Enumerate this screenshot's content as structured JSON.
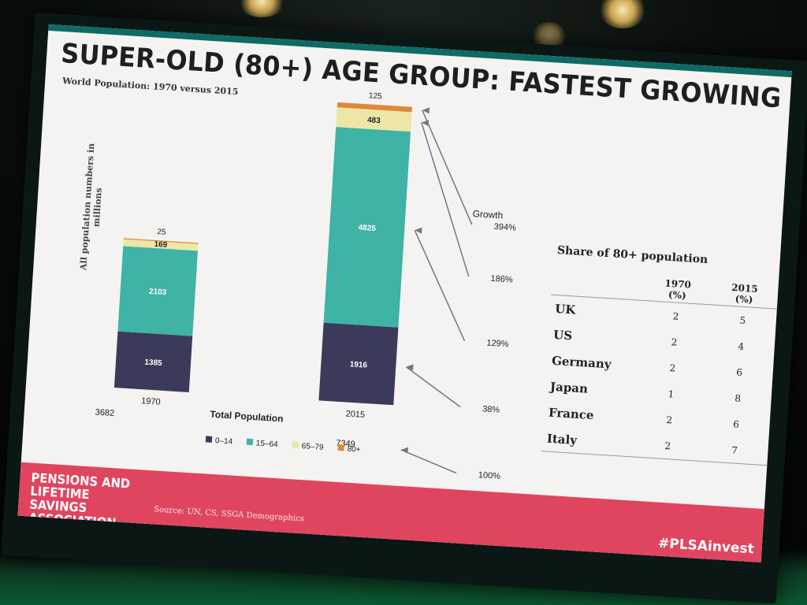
{
  "slide": {
    "title": "SUPER-OLD (80+) AGE GROUP: FASTEST GROWING",
    "subtitle": "World Population: 1970 versus 2015",
    "footer_logo": "PENSIONS AND LIFETIME SAVINGS ASSOCIATION",
    "source": "Source: UN, CS, SSGA Demographics",
    "hashtag": "#PLSAinvest"
  },
  "chart_data": {
    "type": "bar",
    "stacked": true,
    "title": "World Population: 1970 versus 2015",
    "ylabel": "All population numbers in millions",
    "xlabel": "Total Population",
    "categories": [
      "1970",
      "2015"
    ],
    "series": [
      {
        "name": "0–14",
        "color": "#3b3a5a",
        "values": [
          1385,
          1916
        ]
      },
      {
        "name": "15–64",
        "color": "#3fb3a6",
        "values": [
          2103,
          4825
        ]
      },
      {
        "name": "65–79",
        "color": "#ece7a6",
        "values": [
          169,
          483
        ]
      },
      {
        "name": "80+",
        "color": "#e0883a",
        "values": [
          25,
          125
        ]
      }
    ],
    "totals": {
      "1970": "3682",
      "2015": "7349"
    },
    "growth_header": "Growth",
    "growth": [
      {
        "series": "80+",
        "label": "394%"
      },
      {
        "series": "65–79",
        "label": "186%"
      },
      {
        "series": "15–64",
        "label": "129%"
      },
      {
        "series": "0–14",
        "label": "38%"
      },
      {
        "series": "Total Population",
        "label": "100%"
      }
    ],
    "legend_position": "bottom"
  },
  "share_table": {
    "title": "Share of 80+ population",
    "col1_line1": "1970",
    "col1_line2": "(%)",
    "col2_line1": "2015",
    "col2_line2": "(%)",
    "rows": [
      {
        "country": "UK",
        "v1970": "2",
        "v2015": "5"
      },
      {
        "country": "US",
        "v1970": "2",
        "v2015": "4"
      },
      {
        "country": "Germany",
        "v1970": "2",
        "v2015": "6"
      },
      {
        "country": "Japan",
        "v1970": "1",
        "v2015": "8"
      },
      {
        "country": "France",
        "v1970": "2",
        "v2015": "6"
      },
      {
        "country": "Italy",
        "v1970": "2",
        "v2015": "7"
      }
    ]
  }
}
